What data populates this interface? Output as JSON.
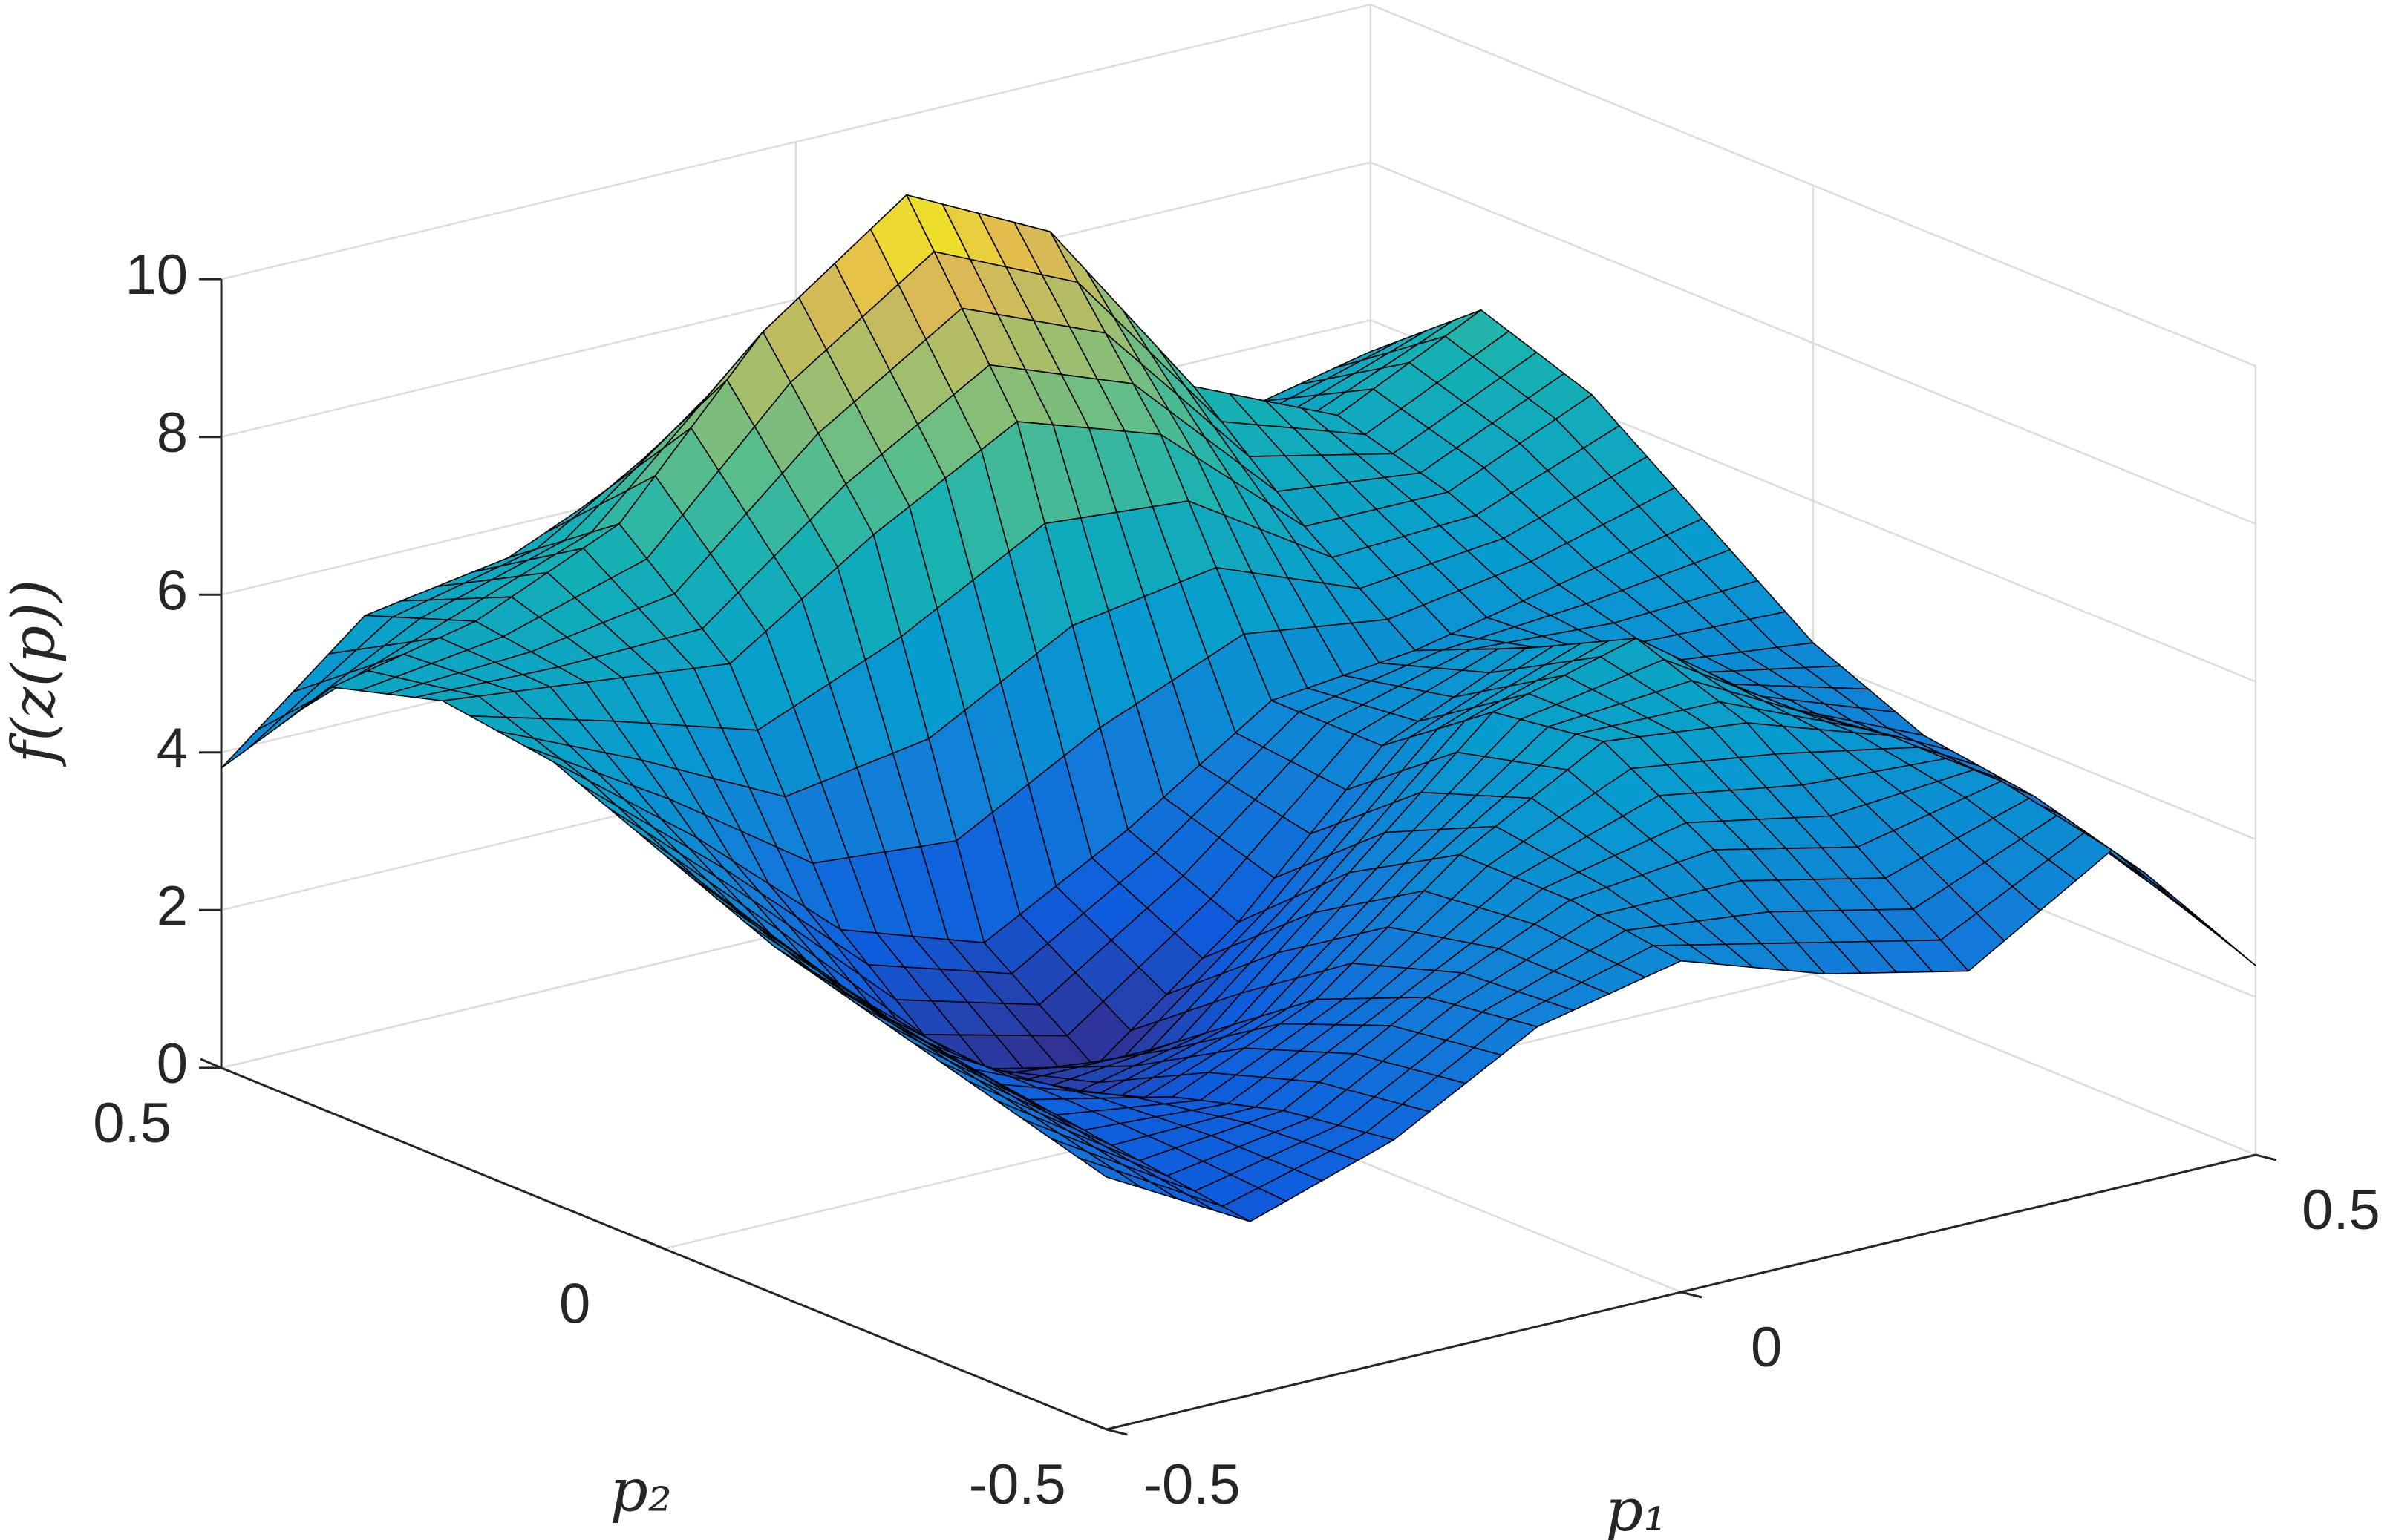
{
  "chart_data": {
    "type": "surface",
    "xlabel": "p₁",
    "ylabel": "p₂",
    "zlabel": "f(z(p))",
    "x": [
      -0.5,
      -0.375,
      -0.25,
      -0.125,
      0,
      0.125,
      0.25,
      0.375,
      0.5
    ],
    "y": [
      -0.5,
      -0.375,
      -0.25,
      -0.125,
      0,
      0.125,
      0.25,
      0.375,
      0.5
    ],
    "z": [
      [
        3.2,
        2.2,
        2.8,
        3.8,
        4.2,
        3.6,
        3.2,
        4.3,
        2.4
      ],
      [
        3.6,
        2.4,
        2.6,
        3.6,
        4.4,
        4.6,
        4.2,
        4.6,
        3.0
      ],
      [
        4.0,
        2.6,
        2.2,
        3.0,
        4.4,
        5.4,
        5.2,
        4.6,
        3.4
      ],
      [
        4.4,
        2.8,
        1.6,
        2.0,
        3.6,
        5.2,
        5.7,
        4.4,
        3.6
      ],
      [
        5.0,
        3.2,
        1.4,
        1.0,
        2.4,
        4.2,
        5.0,
        4.4,
        4.2
      ],
      [
        5.6,
        4.2,
        2.6,
        2.0,
        3.0,
        4.2,
        4.4,
        4.8,
        5.2
      ],
      [
        5.8,
        5.6,
        5.4,
        6.6,
        7.6,
        7.0,
        5.4,
        5.4,
        6.2
      ],
      [
        5.4,
        5.8,
        6.6,
        8.6,
        9.9,
        9.0,
        6.6,
        5.8,
        6.7
      ],
      [
        3.8,
        5.3,
        5.6,
        6.4,
        7.6,
        7.6,
        6.0,
        5.2,
        5.6
      ]
    ],
    "xlim": [
      -0.5,
      0.5
    ],
    "ylim": [
      -0.5,
      0.5
    ],
    "zlim": [
      0,
      10
    ],
    "xticks": [
      -0.5,
      0,
      0.5
    ],
    "yticks": [
      -0.5,
      0,
      0.5
    ],
    "zticks": [
      0,
      2,
      4,
      6,
      8,
      10
    ],
    "grid": true,
    "colormap": "parula",
    "edgecolor": "#000000"
  }
}
